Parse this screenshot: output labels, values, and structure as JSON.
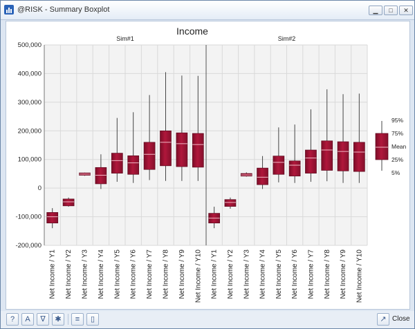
{
  "window": {
    "title": "@RISK - Summary Boxplot",
    "minimize_label": "▁",
    "restore_label": "□",
    "close_label": "✕"
  },
  "toolbar": {
    "help_icon": "?",
    "a_icon": "A",
    "filter_icon": "∇",
    "settings_icon": "✱",
    "lines_icon": "≡",
    "chart_icon": "▯",
    "close_label": "Close"
  },
  "chart_data": {
    "type": "boxplot",
    "title": "Income",
    "ylim": [
      -200000,
      500000
    ],
    "yticks": [
      500000,
      400000,
      300000,
      200000,
      100000,
      0,
      -100000,
      -200000
    ],
    "ytick_labels": [
      "500,000",
      "400,000",
      "300,000",
      "200,000",
      "100,000",
      "0",
      "-100,000",
      "-200,000"
    ],
    "grid": true,
    "categories": [
      "Net Income / Y1",
      "Net Income / Y2",
      "Net Income / Y3",
      "Net Income / Y4",
      "Net Income / Y5",
      "Net Income / Y6",
      "Net Income / Y7",
      "Net Income / Y8",
      "Net Income / Y9",
      "Net Income / Y10"
    ],
    "panels": [
      {
        "name": "Sim#1",
        "boxes": [
          {
            "min": -140000,
            "q1": -122000,
            "mean": -100000,
            "q3": -85000,
            "max": -70000
          },
          {
            "min": -65000,
            "q1": -62000,
            "mean": -48000,
            "q3": -38000,
            "max": -33000
          },
          {
            "min": 43000,
            "q1": 45000,
            "mean": 49000,
            "q3": 53000,
            "max": 54000
          },
          {
            "min": -3000,
            "q1": 15000,
            "mean": 45000,
            "q3": 72000,
            "max": 118000
          },
          {
            "min": 22000,
            "q1": 52000,
            "mean": 96000,
            "q3": 122000,
            "max": 245000
          },
          {
            "min": 18000,
            "q1": 48000,
            "mean": 88000,
            "q3": 113000,
            "max": 265000
          },
          {
            "min": 28000,
            "q1": 65000,
            "mean": 118000,
            "q3": 160000,
            "max": 325000
          },
          {
            "min": 25000,
            "q1": 78000,
            "mean": 160000,
            "q3": 200000,
            "max": 405000
          },
          {
            "min": 25000,
            "q1": 75000,
            "mean": 155000,
            "q3": 193000,
            "max": 393000
          },
          {
            "min": 25000,
            "q1": 73000,
            "mean": 152000,
            "q3": 191000,
            "max": 392000
          }
        ]
      },
      {
        "name": "Sim#2",
        "boxes": [
          {
            "min": -140000,
            "q1": -122000,
            "mean": -105000,
            "q3": -88000,
            "max": -65000
          },
          {
            "min": -72000,
            "q1": -64000,
            "mean": -50000,
            "q3": -40000,
            "max": -33000
          },
          {
            "min": 40000,
            "q1": 42000,
            "mean": 46000,
            "q3": 51000,
            "max": 55000
          },
          {
            "min": -3000,
            "q1": 12000,
            "mean": 38000,
            "q3": 70000,
            "max": 112000
          },
          {
            "min": 20000,
            "q1": 48000,
            "mean": 90000,
            "q3": 112000,
            "max": 212000
          },
          {
            "min": 18000,
            "q1": 42000,
            "mean": 80000,
            "q3": 95000,
            "max": 222000
          },
          {
            "min": 22000,
            "q1": 52000,
            "mean": 105000,
            "q3": 133000,
            "max": 275000
          },
          {
            "min": 24000,
            "q1": 62000,
            "mean": 133000,
            "q3": 165000,
            "max": 345000
          },
          {
            "min": 18000,
            "q1": 60000,
            "mean": 128000,
            "q3": 162000,
            "max": 328000
          },
          {
            "min": 18000,
            "q1": 58000,
            "mean": 126000,
            "q3": 160000,
            "max": 330000
          }
        ]
      }
    ],
    "legend": {
      "placement": "right",
      "labels": [
        "95%",
        "75%",
        "Mean",
        "25%",
        "5%"
      ]
    },
    "colors": {
      "box_fill": "#b0173b",
      "box_stroke": "#5e0b1f",
      "whisker": "#444444",
      "grid": "#d9d9d9"
    }
  }
}
